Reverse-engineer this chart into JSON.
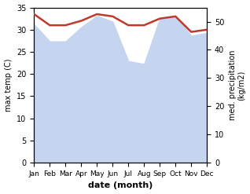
{
  "months": [
    "Jan",
    "Feb",
    "Mar",
    "Apr",
    "May",
    "Jun",
    "Jul",
    "Aug",
    "Sep",
    "Oct",
    "Nov",
    "Dec"
  ],
  "month_x": [
    0,
    1,
    2,
    3,
    4,
    5,
    6,
    7,
    8,
    9,
    10,
    11
  ],
  "max_temp": [
    33.5,
    31.0,
    31.0,
    32.0,
    33.5,
    33.0,
    31.0,
    31.0,
    32.5,
    33.0,
    29.5,
    30.0
  ],
  "precipitation": [
    49.0,
    43.0,
    43.0,
    48.0,
    52.0,
    50.0,
    36.0,
    35.0,
    51.0,
    52.0,
    45.0,
    46.0
  ],
  "temp_color": "#c0392b",
  "precip_fill_color": "#c5d5ef",
  "temp_ylim": [
    0,
    35
  ],
  "precip_ylim": [
    0,
    55
  ],
  "ylabel_left": "max temp (C)",
  "ylabel_right": "med. precipitation\n(kg/m2)",
  "xlabel": "date (month)",
  "background_color": "#ffffff",
  "temp_linewidth": 1.8
}
